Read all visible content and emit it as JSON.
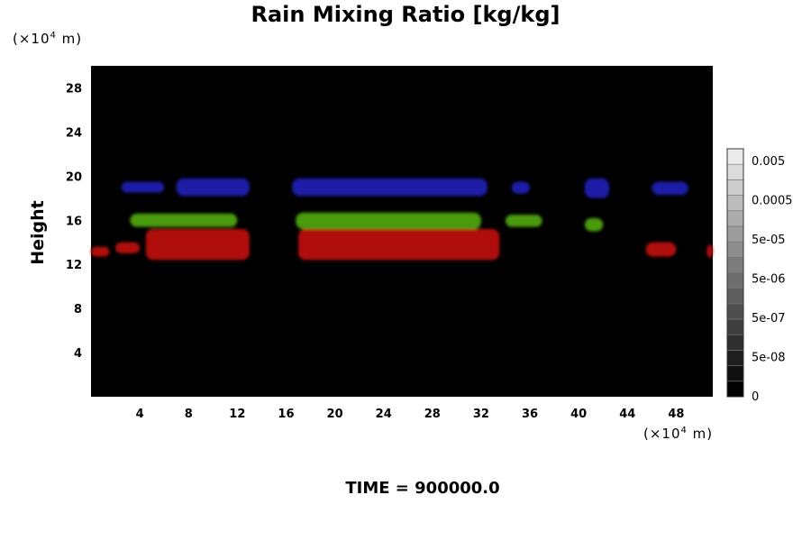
{
  "chart_data": {
    "type": "heatmap",
    "title": "Rain Mixing Ratio [kg/kg]",
    "ylabel": "Height",
    "xlabel": "",
    "x_unit": "(×10",
    "x_unit_exp": "4",
    "x_unit_tail": " m)",
    "y_unit": "(×10",
    "y_unit_exp": "4",
    "y_unit_tail": " m)",
    "xlim": [
      0,
      51
    ],
    "ylim": [
      0,
      30
    ],
    "x_ticks": [
      "4",
      "8",
      "12",
      "16",
      "20",
      "24",
      "28",
      "32",
      "36",
      "40",
      "44",
      "48"
    ],
    "y_ticks": [
      "4",
      "8",
      "12",
      "16",
      "20",
      "24",
      "28"
    ],
    "background_color": "#000000",
    "colorbar": {
      "labels": [
        "0.005",
        "0.0005",
        "5e-05",
        "5e-06",
        "5e-07",
        "5e-08",
        "0"
      ],
      "levels": 16
    },
    "series": [
      {
        "color": "#1a1aa6",
        "regions": [
          {
            "x": [
              2.5,
              6.0
            ],
            "y": [
              18.5,
              19.5
            ]
          },
          {
            "x": [
              7.0,
              13.0
            ],
            "y": [
              18.2,
              19.8
            ]
          },
          {
            "x": [
              16.5,
              32.5
            ],
            "y": [
              18.2,
              19.8
            ]
          },
          {
            "x": [
              34.5,
              36.0
            ],
            "y": [
              18.4,
              19.5
            ]
          },
          {
            "x": [
              40.5,
              42.5
            ],
            "y": [
              18.0,
              19.8
            ]
          },
          {
            "x": [
              46.0,
              49.0
            ],
            "y": [
              18.3,
              19.5
            ]
          }
        ]
      },
      {
        "color": "#4a9a10",
        "regions": [
          {
            "x": [
              3.2,
              12.0
            ],
            "y": [
              15.4,
              16.6
            ]
          },
          {
            "x": [
              16.8,
              32.0
            ],
            "y": [
              15.2,
              16.7
            ]
          },
          {
            "x": [
              34.0,
              37.0
            ],
            "y": [
              15.4,
              16.5
            ]
          },
          {
            "x": [
              40.5,
              42.0
            ],
            "y": [
              15.0,
              16.2
            ]
          }
        ]
      },
      {
        "color": "#b01010",
        "regions": [
          {
            "x": [
              0.0,
              1.5
            ],
            "y": [
              12.7,
              13.6
            ]
          },
          {
            "x": [
              2.0,
              4.0
            ],
            "y": [
              13.0,
              14.0
            ]
          },
          {
            "x": [
              4.5,
              13.0
            ],
            "y": [
              12.4,
              15.2
            ]
          },
          {
            "x": [
              17.0,
              33.5
            ],
            "y": [
              12.4,
              15.2
            ]
          },
          {
            "x": [
              45.5,
              48.0
            ],
            "y": [
              12.7,
              14.0
            ]
          },
          {
            "x": [
              50.5,
              51.0
            ],
            "y": [
              12.6,
              13.8
            ]
          }
        ]
      }
    ]
  },
  "footer": {
    "time": "TIME = 900000.0"
  }
}
